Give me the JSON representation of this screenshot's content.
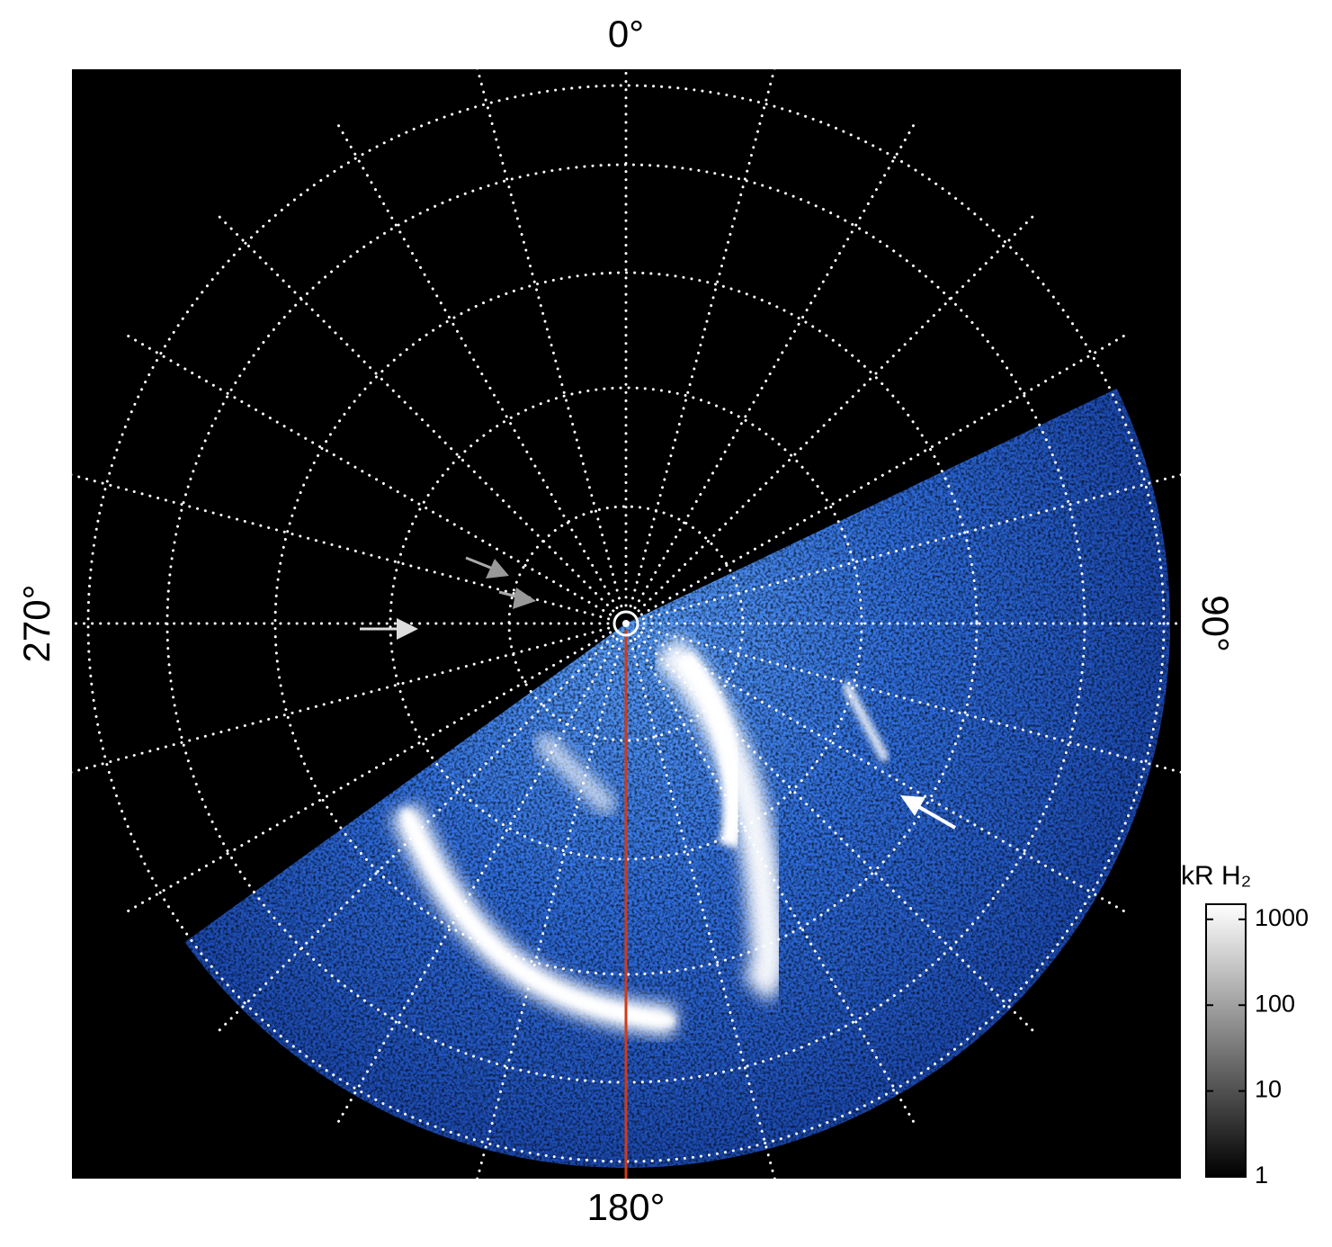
{
  "chart_data": {
    "type": "polar-image",
    "angle_ticks": [
      {
        "value": 0,
        "label": "0°"
      },
      {
        "value": 90,
        "label": "90°"
      },
      {
        "value": 180,
        "label": "180°"
      },
      {
        "value": 270,
        "label": "270°"
      }
    ],
    "colorbar": {
      "label": "kR H₂",
      "lim": [
        1,
        1500
      ],
      "ticks": [
        1,
        10,
        100,
        1000
      ],
      "log": true
    }
  }
}
